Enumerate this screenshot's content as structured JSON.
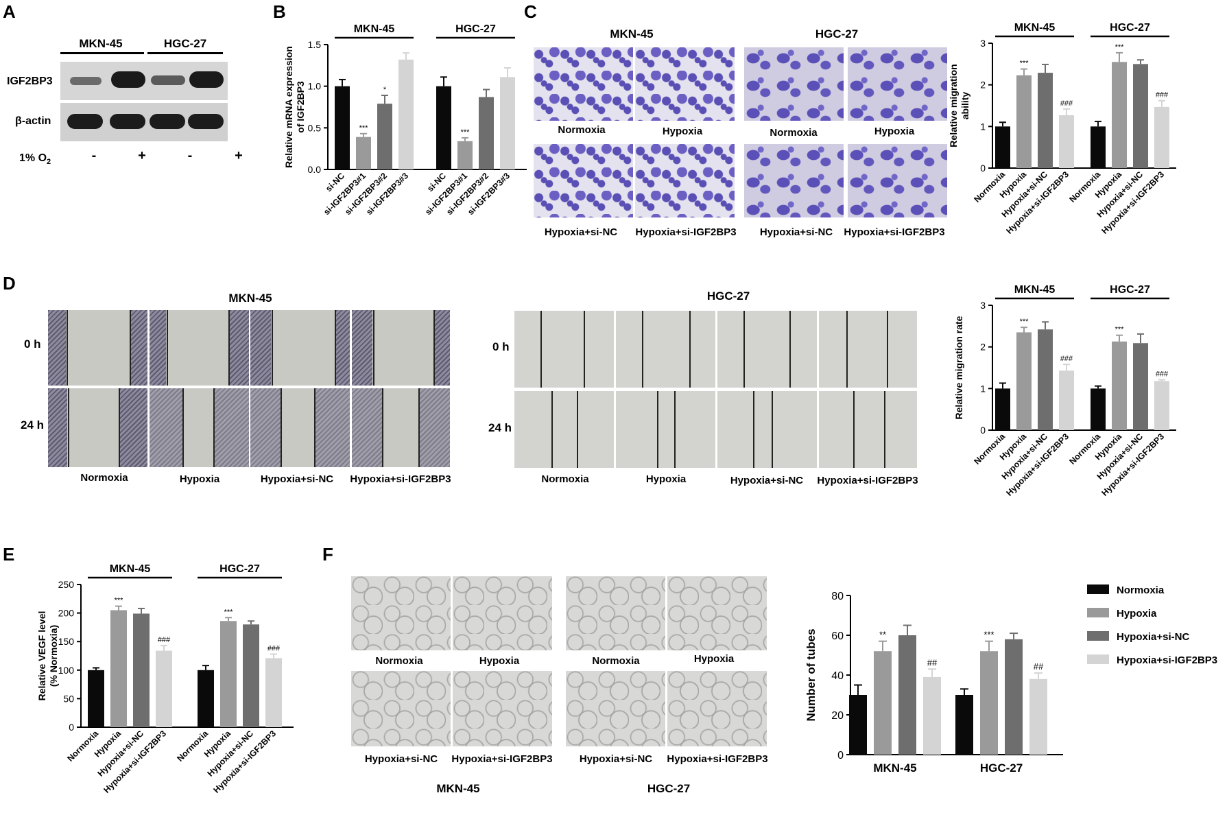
{
  "panels": {
    "A": {
      "letter": "A",
      "group1": "MKN-45",
      "group2": "HGC-27",
      "protein1": "IGF2BP3",
      "protein2": "β-actin",
      "condition": "1% O",
      "condition_sub": "2",
      "lanes": [
        "-",
        "+",
        "-",
        "+"
      ]
    },
    "B": {
      "letter": "B"
    },
    "C": {
      "letter": "C",
      "group1": "MKN-45",
      "group2": "HGC-27",
      "img_labels": [
        "Normoxia",
        "Hypoxia",
        "Normoxia",
        "Hypoxia",
        "Hypoxia+si-NC",
        "Hypoxia+si-IGF2BP3",
        "Hypoxia+si-NC",
        "Hypoxia+si-IGF2BP3"
      ]
    },
    "D": {
      "letter": "D",
      "group1": "MKN-45",
      "group2": "HGC-27",
      "time1": "0 h",
      "time2": "24 h",
      "img_labels": [
        "Normoxia",
        "Hypoxia",
        "Hypoxia+si-NC",
        "Hypoxia+si-IGF2BP3"
      ]
    },
    "E": {
      "letter": "E"
    },
    "F": {
      "letter": "F",
      "group1": "MKN-45",
      "group2": "HGC-27",
      "img_labels": [
        "Normoxia",
        "Hypoxia",
        "Normoxia",
        "Hypoxia",
        "Hypoxia+si-NC",
        "Hypoxia+si-IGF2BP3",
        "Hypoxia+si-NC",
        "Hypoxia+si-IGF2BP3"
      ]
    }
  },
  "colors": {
    "normoxia": "#0a0a0a",
    "hypoxia": "#9a9a9a",
    "si_nc": "#6e6e6e",
    "si_igf2bp3": "#d4d4d4"
  },
  "chart_data": [
    {
      "id": "B",
      "type": "bar",
      "ylabel": "Relative mRNA expression of IGF2BP3",
      "ylim": [
        0,
        1.5
      ],
      "yticks": [
        "0.0",
        "0.5",
        "1.0",
        "1.5"
      ],
      "groups": [
        {
          "name": "MKN-45",
          "categories": [
            "si-NC",
            "si-IGF2BP3#1",
            "si-IGF2BP3#2",
            "si-IGF2BP3#3"
          ],
          "values": [
            1.0,
            0.39,
            0.79,
            1.32
          ],
          "errors": [
            0.08,
            0.04,
            0.1,
            0.08
          ],
          "sig": [
            "",
            "***",
            "*",
            ""
          ]
        },
        {
          "name": "HGC-27",
          "categories": [
            "si-NC",
            "si-IGF2BP3#1",
            "si-IGF2BP3#2",
            "si-IGF2BP3#3"
          ],
          "values": [
            1.0,
            0.34,
            0.87,
            1.11
          ],
          "errors": [
            0.11,
            0.04,
            0.09,
            0.11
          ],
          "sig": [
            "",
            "***",
            "",
            ""
          ]
        }
      ]
    },
    {
      "id": "C",
      "type": "bar",
      "ylabel": "Relative migration ability",
      "ylim": [
        0,
        3
      ],
      "yticks": [
        "0",
        "1",
        "2",
        "3"
      ],
      "groups": [
        {
          "name": "MKN-45",
          "categories": [
            "Normoxia",
            "Hypoxia",
            "Hypoxia+si-NC",
            "Hypoxia+si-IGF2BP3"
          ],
          "values": [
            1.0,
            2.23,
            2.29,
            1.27
          ],
          "errors": [
            0.1,
            0.15,
            0.2,
            0.15
          ],
          "sig": [
            "",
            "***",
            "",
            "###"
          ]
        },
        {
          "name": "HGC-27",
          "categories": [
            "Normoxia",
            "Hypoxia",
            "Hypoxia+si-NC",
            "Hypoxia+si-IGF2BP3"
          ],
          "values": [
            1.0,
            2.55,
            2.5,
            1.47
          ],
          "errors": [
            0.12,
            0.22,
            0.1,
            0.15
          ],
          "sig": [
            "",
            "***",
            "",
            "###"
          ]
        }
      ]
    },
    {
      "id": "D",
      "type": "bar",
      "ylabel": "Relative migration rate",
      "ylim": [
        0,
        3
      ],
      "yticks": [
        "0",
        "1",
        "2",
        "3"
      ],
      "groups": [
        {
          "name": "MKN-45",
          "categories": [
            "Normoxia",
            "Hypoxia",
            "Hypoxia+si-NC",
            "Hypoxia+si-IGF2BP3"
          ],
          "values": [
            1.0,
            2.35,
            2.42,
            1.43
          ],
          "errors": [
            0.13,
            0.12,
            0.18,
            0.15
          ],
          "sig": [
            "",
            "***",
            "",
            "###"
          ]
        },
        {
          "name": "HGC-27",
          "categories": [
            "Normoxia",
            "Hypoxia",
            "Hypoxia+si-NC",
            "Hypoxia+si-IGF2BP3"
          ],
          "values": [
            1.0,
            2.13,
            2.09,
            1.18
          ],
          "errors": [
            0.06,
            0.15,
            0.22,
            0.03
          ],
          "sig": [
            "",
            "***",
            "",
            "###"
          ]
        }
      ]
    },
    {
      "id": "E",
      "type": "bar",
      "ylabel": "Relative VEGF level (% Normoxia)",
      "ylim": [
        0,
        250
      ],
      "yticks": [
        "0",
        "50",
        "100",
        "150",
        "200",
        "250"
      ],
      "groups": [
        {
          "name": "MKN-45",
          "categories": [
            "Normoxia",
            "Hypoxia",
            "Hypoxia+si-NC",
            "Hypoxia+si-IGF2BP3"
          ],
          "values": [
            100,
            205,
            199,
            134
          ],
          "errors": [
            4,
            7,
            9,
            9
          ],
          "sig": [
            "",
            "***",
            "",
            "###"
          ]
        },
        {
          "name": "HGC-27",
          "categories": [
            "Normoxia",
            "Hypoxia",
            "Hypoxia+si-NC",
            "Hypoxia+si-IGF2BP3"
          ],
          "values": [
            100,
            186,
            180,
            121
          ],
          "errors": [
            8,
            6,
            6,
            7
          ],
          "sig": [
            "",
            "***",
            "",
            "###"
          ]
        }
      ]
    },
    {
      "id": "F",
      "type": "bar",
      "ylabel": "Number of tubes",
      "ylim": [
        0,
        80
      ],
      "yticks": [
        "0",
        "20",
        "40",
        "60",
        "80"
      ],
      "categories": [
        "MKN-45",
        "HGC-27"
      ],
      "series": [
        {
          "name": "Normoxia",
          "values": [
            30,
            30
          ],
          "errors": [
            5,
            3
          ],
          "sig": [
            "",
            ""
          ]
        },
        {
          "name": "Hypoxia",
          "values": [
            52,
            52
          ],
          "errors": [
            5,
            5
          ],
          "sig": [
            "**",
            "***"
          ]
        },
        {
          "name": "Hypoxia+si-NC",
          "values": [
            60,
            58
          ],
          "errors": [
            5,
            3
          ],
          "sig": [
            "",
            ""
          ]
        },
        {
          "name": "Hypoxia+si-IGF2BP3",
          "values": [
            39,
            38
          ],
          "errors": [
            4,
            3
          ],
          "sig": [
            "##",
            "##"
          ]
        }
      ]
    }
  ]
}
